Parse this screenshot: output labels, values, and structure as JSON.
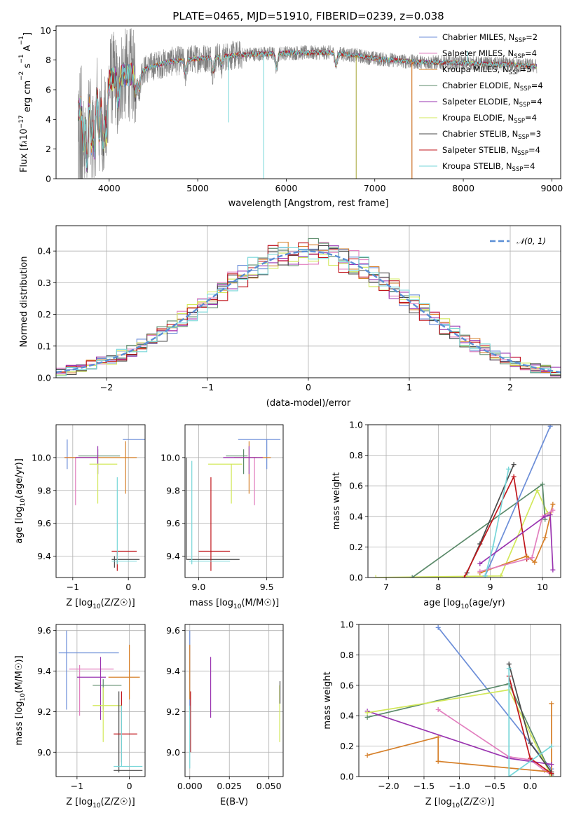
{
  "title": "PLATE=0465, MJD=51910, FIBERID=0239, z=0.038",
  "colors": {
    "chabrier_miles": "#6c8ed8",
    "salpeter_miles": "#e27fbf",
    "kroupa_miles": "#d6802a",
    "chabrier_elodie": "#5b8a6a",
    "salpeter_elodie": "#9a34b0",
    "kroupa_elodie": "#d2e85a",
    "chabrier_stelib": "#4a4a4a",
    "salpeter_stelib": "#c0151b",
    "kroupa_stelib": "#76d6d8",
    "data": "#7f7f7f",
    "normal": "#5b8fd6"
  },
  "chart_data": [
    {
      "id": "spectrum",
      "type": "line",
      "xlabel": "wavelength [Angstrom, rest frame]",
      "ylabel_parts": [
        "Flux [f",
        "λ",
        "10",
        "−17",
        " erg cm",
        "−2",
        " s",
        "−1",
        " A",
        "−1",
        "]"
      ],
      "xlim": [
        3400,
        9100
      ],
      "ylim": [
        0,
        10.3
      ],
      "xticks": [
        4000,
        5000,
        6000,
        7000,
        8000,
        9000
      ],
      "yticks": [
        0,
        2,
        4,
        6,
        8,
        10
      ],
      "legend": [
        {
          "model": "Chabrier MILES",
          "n": "2",
          "color_key": "chabrier_miles"
        },
        {
          "model": "Salpeter MILES",
          "n": "4",
          "color_key": "salpeter_miles"
        },
        {
          "model": "Kroupa MILES",
          "n": "5",
          "color_key": "kroupa_miles"
        },
        {
          "model": "Chabrier ELODIE",
          "n": "4",
          "color_key": "chabrier_elodie"
        },
        {
          "model": "Salpeter ELODIE",
          "n": "4",
          "color_key": "salpeter_elodie"
        },
        {
          "model": "Kroupa ELODIE",
          "n": "4",
          "color_key": "kroupa_elodie"
        },
        {
          "model": "Chabrier STELIB",
          "n": "3",
          "color_key": "chabrier_stelib"
        },
        {
          "model": "Salpeter STELIB",
          "n": "4",
          "color_key": "salpeter_stelib"
        },
        {
          "model": "Kroupa STELIB",
          "n": "4",
          "color_key": "kroupa_stelib"
        }
      ],
      "nssp_label": "N",
      "nssp_sub": "SSP",
      "continuum": [
        [
          3650,
          4.5
        ],
        [
          3700,
          5.2
        ],
        [
          3800,
          5.8
        ],
        [
          3900,
          6.2
        ],
        [
          4000,
          6.6
        ],
        [
          4100,
          6.9
        ],
        [
          4300,
          7.1
        ],
        [
          4500,
          7.6
        ],
        [
          4700,
          7.9
        ],
        [
          5000,
          8.1
        ],
        [
          5300,
          8.25
        ],
        [
          5600,
          8.4
        ],
        [
          5900,
          8.45
        ],
        [
          6200,
          8.5
        ],
        [
          6500,
          8.5
        ],
        [
          6800,
          8.3
        ],
        [
          7000,
          8.1
        ],
        [
          7400,
          7.9
        ],
        [
          7500,
          7.85
        ],
        [
          8000,
          7.8
        ],
        [
          8500,
          7.7
        ],
        [
          8800,
          7.6
        ]
      ],
      "data_range": [
        3650,
        8830
      ],
      "miles_end": 7420,
      "model_end": 8830,
      "dips": [
        {
          "x": 3710,
          "depth": 3.0
        },
        {
          "x": 3750,
          "depth": 4.5
        },
        {
          "x": 3800,
          "depth": 3.5
        },
        {
          "x": 3835,
          "depth": 4.0
        },
        {
          "x": 3889,
          "depth": 3.2
        },
        {
          "x": 3933,
          "depth": 4.0
        },
        {
          "x": 3968,
          "depth": 3.5
        },
        {
          "x": 4102,
          "depth": 1.8
        },
        {
          "x": 4300,
          "depth": 1.5
        },
        {
          "x": 4340,
          "depth": 1.2
        },
        {
          "x": 4861,
          "depth": 0.9
        },
        {
          "x": 5175,
          "depth": 1.0
        },
        {
          "x": 5270,
          "depth": 0.6
        },
        {
          "x": 5890,
          "depth": 1.0
        },
        {
          "x": 6563,
          "depth": 0.8
        }
      ],
      "spikes": [
        {
          "x": 5350,
          "to": 3.8
        },
        {
          "x": 5745,
          "to": 0
        },
        {
          "x": 6790,
          "to": 0
        },
        {
          "x": 7420,
          "to": 0
        },
        {
          "x": 8050,
          "to": 8.6
        }
      ]
    },
    {
      "id": "residuals",
      "type": "histogram",
      "xlabel": "(data-model)/error",
      "ylabel": "Normed distribution",
      "xlim": [
        -2.5,
        2.5
      ],
      "ylim": [
        0,
        0.48
      ],
      "xticks": [
        -2,
        -1,
        0,
        1,
        2
      ],
      "xtick_labels": [
        "−2",
        "−1",
        "0",
        "1",
        "2"
      ],
      "yticks": [
        0.0,
        0.1,
        0.2,
        0.3,
        0.4
      ],
      "ytick_labels": [
        "0.0",
        "0.1",
        "0.2",
        "0.3",
        "0.4"
      ],
      "bin_width": 0.1,
      "legend_label": "𝒩(0, 1)"
    },
    {
      "id": "z_vs_age",
      "type": "scatter",
      "xlabel": "Z [log",
      "ylabel": "age  [log",
      "xlim": [
        -1.3,
        0.3
      ],
      "ylim": [
        9.27,
        10.2
      ],
      "xticks": [
        -1,
        0
      ],
      "xtick_labels": [
        "−1",
        "0"
      ],
      "yticks": [
        9.4,
        9.6,
        9.8,
        10.0
      ],
      "ytick_labels": [
        "9.4",
        "9.6",
        "9.8",
        "10.0"
      ],
      "points": [
        {
          "c": "chabrier_miles",
          "x": -1.1,
          "xl": 1.5,
          "xh": -0.1,
          "y": 10.11,
          "yl": 9.93,
          "yh": 10.11
        },
        {
          "c": "salpeter_miles",
          "x": -0.95,
          "xl": -1.15,
          "xh": -0.55,
          "y": 10.0,
          "yl": 9.71,
          "yh": 10.0
        },
        {
          "c": "kroupa_miles",
          "x": -0.05,
          "xl": -1.15,
          "xh": 0.15,
          "y": 10.0,
          "yl": 9.78,
          "yh": 10.1
        },
        {
          "c": "chabrier_elodie",
          "x": -0.55,
          "xl": -0.9,
          "xh": -0.15,
          "y": 10.01,
          "yl": 9.9,
          "yh": 10.05
        },
        {
          "c": "salpeter_elodie",
          "x": -0.55,
          "xl": -0.95,
          "xh": -0.55,
          "y": 10.0,
          "yl": 9.9,
          "yh": 10.07
        },
        {
          "c": "kroupa_elodie",
          "x": -0.55,
          "xl": -0.7,
          "xh": -0.2,
          "y": 9.96,
          "yl": 9.72,
          "yh": 9.96
        },
        {
          "c": "chabrier_stelib",
          "x": -0.25,
          "xl": -0.3,
          "xh": 0.2,
          "y": 9.38,
          "yl": 9.33,
          "yh": 9.4
        },
        {
          "c": "salpeter_stelib",
          "x": -0.2,
          "xl": -0.3,
          "xh": 0.15,
          "y": 9.43,
          "yl": 9.31,
          "yh": 9.43
        },
        {
          "c": "kroupa_stelib",
          "x": -0.2,
          "xl": -0.3,
          "xh": 0.15,
          "y": 9.37,
          "yl": 9.35,
          "yh": 9.88
        }
      ]
    },
    {
      "id": "mass_vs_age",
      "type": "scatter",
      "xlabel": "mass [log",
      "xlim": [
        8.9,
        9.62
      ],
      "ylim": [
        9.27,
        10.2
      ],
      "xticks": [
        9.0,
        9.5
      ],
      "xtick_labels": [
        "9.0",
        "9.5"
      ],
      "yticks": [
        9.4,
        9.6,
        9.8,
        10.0
      ],
      "ytick_labels": [
        "9.4",
        "9.6",
        "9.8",
        "10.0"
      ],
      "points": [
        {
          "c": "chabrier_miles",
          "x": 9.5,
          "xl": 9.29,
          "xh": 9.6,
          "y": 10.11,
          "yl": 9.93,
          "yh": 10.11
        },
        {
          "c": "salpeter_miles",
          "x": 9.41,
          "xl": 9.18,
          "xh": 9.43,
          "y": 10.0,
          "yl": 9.71,
          "yh": 10.0
        },
        {
          "c": "kroupa_miles",
          "x": 9.37,
          "xl": 9.26,
          "xh": 9.53,
          "y": 10.0,
          "yl": 9.78,
          "yh": 10.1
        },
        {
          "c": "chabrier_elodie",
          "x": 9.33,
          "xl": 9.2,
          "xh": 9.36,
          "y": 10.01,
          "yl": 9.9,
          "yh": 10.05
        },
        {
          "c": "salpeter_elodie",
          "x": 9.37,
          "xl": 9.18,
          "xh": 9.47,
          "y": 10.0,
          "yl": 9.9,
          "yh": 10.07
        },
        {
          "c": "kroupa_elodie",
          "x": 9.24,
          "xl": 9.07,
          "xh": 9.32,
          "y": 9.96,
          "yl": 9.72,
          "yh": 9.96
        },
        {
          "c": "chabrier_stelib",
          "x": 8.91,
          "xl": 8.91,
          "xh": 9.3,
          "y": 9.38,
          "yl": 9.38,
          "yh": 10.0
        },
        {
          "c": "salpeter_stelib",
          "x": 9.09,
          "xl": 9.0,
          "xh": 9.23,
          "y": 9.43,
          "yl": 9.31,
          "yh": 9.88
        },
        {
          "c": "kroupa_stelib",
          "x": 8.95,
          "xl": 8.93,
          "xh": 9.23,
          "y": 9.37,
          "yl": 9.35,
          "yh": 9.98
        }
      ]
    },
    {
      "id": "age_weights",
      "type": "line",
      "xlabel": "age  [log",
      "ylabel": "mass weight",
      "xlim": [
        6.65,
        10.35
      ],
      "ylim": [
        0,
        1.0
      ],
      "xticks": [
        7,
        8,
        9,
        10
      ],
      "xtick_labels": [
        "7",
        "8",
        "9",
        "10"
      ],
      "yticks": [
        0.0,
        0.2,
        0.4,
        0.6,
        0.8,
        1.0
      ],
      "ytick_labels": [
        "0.0",
        "0.2",
        "0.4",
        "0.6",
        "0.8",
        "1.0"
      ],
      "series": [
        {
          "c": "kroupa_elodie",
          "x": [
            6.8,
            9.2,
            9.9,
            10.1
          ],
          "y": [
            0.0,
            0.01,
            0.57,
            0.42
          ]
        },
        {
          "c": "chabrier_elodie",
          "x": [
            7.5,
            10.0,
            10.05
          ],
          "y": [
            0.0,
            0.61,
            0.38
          ]
        },
        {
          "c": "chabrier_stelib",
          "x": [
            8.55,
            8.8,
            9.45
          ],
          "y": [
            0.03,
            0.22,
            0.74
          ]
        },
        {
          "c": "salpeter_stelib",
          "x": [
            8.5,
            9.45,
            9.7
          ],
          "y": [
            0.0,
            0.66,
            0.12
          ]
        },
        {
          "c": "chabrier_miles",
          "x": [
            8.9,
            10.15
          ],
          "y": [
            0.01,
            0.99
          ]
        },
        {
          "c": "kroupa_miles",
          "x": [
            8.8,
            9.7,
            9.85,
            10.05,
            10.2
          ],
          "y": [
            0.03,
            0.14,
            0.1,
            0.26,
            0.48
          ]
        },
        {
          "c": "salpeter_miles",
          "x": [
            8.8,
            9.8,
            10.0,
            10.2
          ],
          "y": [
            0.04,
            0.13,
            0.4,
            0.44
          ]
        },
        {
          "c": "salpeter_elodie",
          "x": [
            8.8,
            10.05,
            10.15,
            10.2
          ],
          "y": [
            0.09,
            0.4,
            0.41,
            0.05
          ]
        },
        {
          "c": "kroupa_stelib",
          "x": [
            8.9,
            9.05,
            9.35
          ],
          "y": [
            0.01,
            0.2,
            0.71
          ]
        }
      ]
    },
    {
      "id": "z_vs_mass",
      "type": "scatter",
      "xlabel": "Z [log",
      "ylabel": "mass [log",
      "xlim": [
        -1.4,
        0.3
      ],
      "ylim": [
        8.88,
        9.63
      ],
      "xticks": [
        -1,
        0
      ],
      "xtick_labels": [
        "−1",
        "0"
      ],
      "yticks": [
        9.0,
        9.2,
        9.4,
        9.6
      ],
      "ytick_labels": [
        "9.0",
        "9.2",
        "9.4",
        "9.6"
      ],
      "points": [
        {
          "c": "chabrier_miles",
          "x": -1.2,
          "xl": -1.35,
          "xh": -0.2,
          "y": 9.49,
          "yl": 9.21,
          "yh": 9.6
        },
        {
          "c": "salpeter_miles",
          "x": -0.95,
          "xl": -1.15,
          "xh": -0.3,
          "y": 9.41,
          "yl": 9.18,
          "yh": 9.43
        },
        {
          "c": "kroupa_miles",
          "x": 0.0,
          "xl": -0.4,
          "xh": 0.2,
          "y": 9.37,
          "yl": 9.26,
          "yh": 9.53
        },
        {
          "c": "chabrier_elodie",
          "x": -0.5,
          "xl": -0.7,
          "xh": -0.15,
          "y": 9.33,
          "yl": 9.21,
          "yh": 9.36
        },
        {
          "c": "salpeter_elodie",
          "x": -0.55,
          "xl": -1.0,
          "xh": -0.45,
          "y": 9.37,
          "yl": 9.16,
          "yh": 9.47
        },
        {
          "c": "kroupa_elodie",
          "x": -0.5,
          "xl": -0.7,
          "xh": -0.15,
          "y": 9.23,
          "yl": 9.05,
          "yh": 9.32
        },
        {
          "c": "chabrier_stelib",
          "x": -0.2,
          "xl": -0.3,
          "xh": 0.25,
          "y": 8.91,
          "yl": 8.9,
          "yh": 9.3
        },
        {
          "c": "salpeter_stelib",
          "x": -0.15,
          "xl": -0.3,
          "xh": 0.15,
          "y": 9.09,
          "yl": 8.95,
          "yh": 9.3
        },
        {
          "c": "kroupa_stelib",
          "x": -0.15,
          "xl": -0.3,
          "xh": 0.25,
          "y": 8.93,
          "yl": 8.93,
          "yh": 9.23
        }
      ]
    },
    {
      "id": "ebv_vs_mass",
      "type": "scatter",
      "xlabel": "E(B-V)",
      "xlim": [
        -0.003,
        0.059
      ],
      "ylim": [
        8.88,
        9.63
      ],
      "xticks": [
        0.0,
        0.025,
        0.05
      ],
      "xtick_labels": [
        "0.000",
        "0.025",
        "0.050"
      ],
      "yticks": [
        9.0,
        9.2,
        9.4,
        9.6
      ],
      "ytick_labels": [
        "9.0",
        "9.2",
        "9.4",
        "9.6"
      ],
      "points": [
        {
          "c": "chabrier_miles",
          "x": 0.0,
          "y": 9.49,
          "yl": 9.21,
          "yh": 9.6
        },
        {
          "c": "kroupa_miles",
          "x": 0.0,
          "y": 9.37,
          "yl": 9.26,
          "yh": 9.53
        },
        {
          "c": "salpeter_elodie",
          "x": 0.0132,
          "y": 9.3,
          "yl": 9.17,
          "yh": 9.47
        },
        {
          "c": "kroupa_elodie",
          "x": 0.0568,
          "y": 9.2,
          "yl": 9.05,
          "yh": 9.33
        },
        {
          "c": "chabrier_stelib",
          "x": 0.057,
          "y": 9.3,
          "yl": 9.24,
          "yh": 9.35
        },
        {
          "c": "salpeter_stelib",
          "x": 0.0005,
          "y": 9.2,
          "yl": 9.0,
          "yh": 9.3
        },
        {
          "c": "kroupa_stelib",
          "x": 0.0,
          "y": 9.0,
          "yl": 8.92,
          "yh": 9.23
        }
      ]
    },
    {
      "id": "z_weights",
      "type": "line",
      "xlabel": "Z [log",
      "ylabel": "mass weight",
      "xlim": [
        -2.42,
        0.43
      ],
      "ylim": [
        0,
        1.0
      ],
      "xticks": [
        -2.0,
        -1.5,
        -1.0,
        -0.5,
        0.0
      ],
      "xtick_labels": [
        "−2.0",
        "−1.5",
        "−1.0",
        "−0.5",
        "0.0"
      ],
      "yticks": [
        0.0,
        0.2,
        0.4,
        0.6,
        0.8,
        1.0
      ],
      "ytick_labels": [
        "0.0",
        "0.2",
        "0.4",
        "0.6",
        "0.8",
        "1.0"
      ],
      "series": [
        {
          "c": "chabrier_miles",
          "x": [
            -1.3,
            0.0,
            0.3
          ],
          "y": [
            0.98,
            0.22,
            0.05
          ]
        },
        {
          "c": "salpeter_miles",
          "x": [
            -1.3,
            -0.3,
            0.0,
            0.2,
            0.3
          ],
          "y": [
            0.44,
            0.13,
            0.11,
            0.04,
            0.01
          ]
        },
        {
          "c": "kroupa_miles",
          "x": [
            -2.3,
            -1.3,
            -1.3,
            0.3,
            0.3
          ],
          "y": [
            0.14,
            0.26,
            0.1,
            0.03,
            0.48
          ]
        },
        {
          "c": "chabrier_elodie",
          "x": [
            -2.3,
            -0.3,
            0.3
          ],
          "y": [
            0.39,
            0.61,
            0.01
          ]
        },
        {
          "c": "salpeter_elodie",
          "x": [
            -2.3,
            -0.3,
            0.3
          ],
          "y": [
            0.43,
            0.12,
            0.08
          ]
        },
        {
          "c": "kroupa_elodie",
          "x": [
            -2.3,
            -0.3,
            0.3
          ],
          "y": [
            0.42,
            0.57,
            0.0
          ]
        },
        {
          "c": "chabrier_stelib",
          "x": [
            -0.3,
            0.0,
            0.3
          ],
          "y": [
            0.74,
            0.22,
            0.03
          ]
        },
        {
          "c": "salpeter_stelib",
          "x": [
            -0.3,
            0.0,
            0.3
          ],
          "y": [
            0.66,
            0.12,
            0.02
          ]
        },
        {
          "c": "kroupa_stelib",
          "x": [
            -0.3,
            -0.3,
            0.3
          ],
          "y": [
            0.71,
            0.0,
            0.2
          ]
        }
      ]
    }
  ]
}
